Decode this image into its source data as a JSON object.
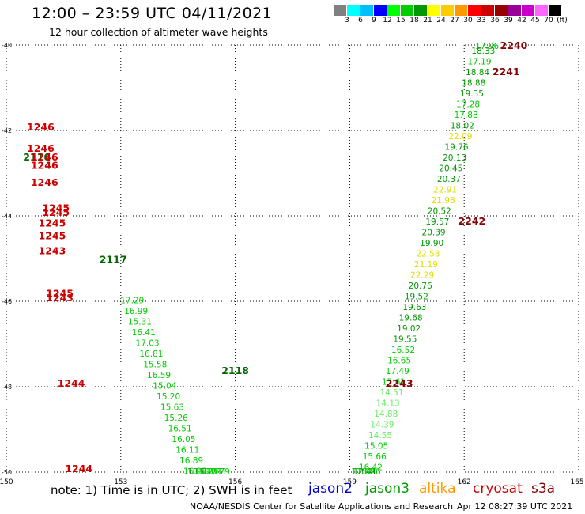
{
  "header": {
    "title": "12:00 – 23:59 UTC 04/11/2021",
    "subtitle": "12 hour collection of altimeter wave heights"
  },
  "legend": {
    "unit": "(ft)",
    "colors": [
      "#808080",
      "#00ffff",
      "#00bfff",
      "#0000ff",
      "#00ff00",
      "#00cc00",
      "#009900",
      "#ffff00",
      "#ffcc00",
      "#ff9900",
      "#ff0000",
      "#cc0000",
      "#990000",
      "#990099",
      "#cc00cc",
      "#ff66ff",
      "#000000"
    ],
    "labels": [
      "3",
      "6",
      "9",
      "12",
      "15",
      "18",
      "21",
      "24",
      "27",
      "30",
      "33",
      "36",
      "39",
      "42",
      "45",
      "70",
      "(ft)"
    ]
  },
  "notes": {
    "note": "note:  1) Time is in UTC; 2) SWH is in feet",
    "satellites": [
      {
        "name": "jason2",
        "color": "#0000cc"
      },
      {
        "name": "jason3",
        "color": "#009900"
      },
      {
        "name": "altika",
        "color": "#ff9900"
      },
      {
        "name": "cryosat",
        "color": "#cc0000"
      },
      {
        "name": "s3a",
        "color": "#880000"
      }
    ],
    "footer_left": "NOAA/NESDIS Center for Satellite Applications and Research",
    "footer_right": "Apr 12 08:27:39 UTC 2021"
  },
  "chart_data": {
    "type": "scatter",
    "title": "12:00 – 23:59 UTC 04/11/2021",
    "xlim": [
      150,
      165
    ],
    "ylim": [
      -50,
      -40
    ],
    "x_ticks": [
      150,
      153,
      156,
      159,
      162,
      165
    ],
    "y_ticks": [
      -40,
      -42,
      -44,
      -46,
      -48,
      -50
    ],
    "grid": true,
    "track_labels": [
      {
        "text": "2240",
        "lon": 163.3,
        "lat": -40.0,
        "color": "#880000"
      },
      {
        "text": "2241",
        "lon": 163.1,
        "lat": -40.7,
        "color": "#880000"
      },
      {
        "text": "2242",
        "lon": 162.2,
        "lat": -44.2,
        "color": "#880000"
      },
      {
        "text": "2243",
        "lon": 160.3,
        "lat": -48.0,
        "color": "#880000"
      },
      {
        "text": "1246",
        "lon": 150.9,
        "lat": -42.0,
        "color": "#cc0000"
      },
      {
        "text": "1246",
        "lon": 150.9,
        "lat": -42.5,
        "color": "#cc0000"
      },
      {
        "text": "2116",
        "lon": 150.8,
        "lat": -42.7,
        "color": "#006600"
      },
      {
        "text": "1246",
        "lon": 151.0,
        "lat": -42.7,
        "color": "#cc0000"
      },
      {
        "text": "1246",
        "lon": 151.0,
        "lat": -42.9,
        "color": "#cc0000"
      },
      {
        "text": "1246",
        "lon": 151.0,
        "lat": -43.3,
        "color": "#cc0000"
      },
      {
        "text": "1245",
        "lon": 151.3,
        "lat": -43.9,
        "color": "#cc0000"
      },
      {
        "text": "1245",
        "lon": 151.3,
        "lat": -44.0,
        "color": "#cc0000"
      },
      {
        "text": "1245",
        "lon": 151.2,
        "lat": -44.25,
        "color": "#cc0000"
      },
      {
        "text": "1245",
        "lon": 151.2,
        "lat": -44.55,
        "color": "#cc0000"
      },
      {
        "text": "1243",
        "lon": 151.2,
        "lat": -44.9,
        "color": "#cc0000"
      },
      {
        "text": "2117",
        "lon": 152.8,
        "lat": -45.1,
        "color": "#006600"
      },
      {
        "text": "1245",
        "lon": 151.4,
        "lat": -45.9,
        "color": "#cc0000"
      },
      {
        "text": "1243",
        "lon": 151.4,
        "lat": -46.0,
        "color": "#cc0000"
      },
      {
        "text": "2118",
        "lon": 156.0,
        "lat": -47.7,
        "color": "#006600"
      },
      {
        "text": "1244",
        "lon": 151.7,
        "lat": -48.0,
        "color": "#cc0000"
      },
      {
        "text": "1244",
        "lon": 151.9,
        "lat": -50.0,
        "color": "#cc0000"
      }
    ],
    "points": [
      {
        "v": "17.96",
        "lon": 162.6,
        "lat": -40.0
      },
      {
        "v": "18.33",
        "lon": 162.5,
        "lat": -40.2
      },
      {
        "v": "17.19",
        "lon": 162.4,
        "lat": -40.45
      },
      {
        "v": "18.84",
        "lon": 162.35,
        "lat": -40.7
      },
      {
        "v": "18.88",
        "lon": 162.25,
        "lat": -40.95
      },
      {
        "v": "19.35",
        "lon": 162.2,
        "lat": -41.2
      },
      {
        "v": "17.28",
        "lon": 162.1,
        "lat": -41.45
      },
      {
        "v": "17.88",
        "lon": 162.05,
        "lat": -41.7
      },
      {
        "v": "18.02",
        "lon": 161.95,
        "lat": -41.95
      },
      {
        "v": "22.09",
        "lon": 161.9,
        "lat": -42.2
      },
      {
        "v": "19.76",
        "lon": 161.8,
        "lat": -42.45
      },
      {
        "v": "20.13",
        "lon": 161.75,
        "lat": -42.7
      },
      {
        "v": "20.45",
        "lon": 161.65,
        "lat": -42.95
      },
      {
        "v": "20.37",
        "lon": 161.6,
        "lat": -43.2
      },
      {
        "v": "22.91",
        "lon": 161.5,
        "lat": -43.45
      },
      {
        "v": "21.98",
        "lon": 161.45,
        "lat": -43.7
      },
      {
        "v": "20.52",
        "lon": 161.35,
        "lat": -43.95
      },
      {
        "v": "19.57",
        "lon": 161.3,
        "lat": -44.2
      },
      {
        "v": "20.39",
        "lon": 161.2,
        "lat": -44.45
      },
      {
        "v": "19.90",
        "lon": 161.15,
        "lat": -44.7
      },
      {
        "v": "22.58",
        "lon": 161.05,
        "lat": -44.95
      },
      {
        "v": "21.19",
        "lon": 161.0,
        "lat": -45.2
      },
      {
        "v": "22.29",
        "lon": 160.9,
        "lat": -45.45
      },
      {
        "v": "20.76",
        "lon": 160.85,
        "lat": -45.7
      },
      {
        "v": "19.52",
        "lon": 160.75,
        "lat": -45.95
      },
      {
        "v": "19.63",
        "lon": 160.7,
        "lat": -46.2
      },
      {
        "v": "19.68",
        "lon": 160.6,
        "lat": -46.45
      },
      {
        "v": "19.02",
        "lon": 160.55,
        "lat": -46.7
      },
      {
        "v": "19.55",
        "lon": 160.45,
        "lat": -46.95
      },
      {
        "v": "16.52",
        "lon": 160.4,
        "lat": -47.2
      },
      {
        "v": "16.65",
        "lon": 160.3,
        "lat": -47.45
      },
      {
        "v": "17.49",
        "lon": 160.25,
        "lat": -47.7
      },
      {
        "v": "15.61",
        "lon": 160.15,
        "lat": -47.95
      },
      {
        "v": "14.51",
        "lon": 160.1,
        "lat": -48.2
      },
      {
        "v": "14.13",
        "lon": 160.0,
        "lat": -48.45
      },
      {
        "v": "14.88",
        "lon": 159.95,
        "lat": -48.7
      },
      {
        "v": "14.39",
        "lon": 159.85,
        "lat": -48.95
      },
      {
        "v": "14.55",
        "lon": 159.8,
        "lat": -49.2
      },
      {
        "v": "15.05",
        "lon": 159.7,
        "lat": -49.45
      },
      {
        "v": "15.66",
        "lon": 159.65,
        "lat": -49.7
      },
      {
        "v": "16.42",
        "lon": 159.55,
        "lat": -49.95
      },
      {
        "v": "15.86",
        "lon": 159.5,
        "lat": -50.2
      },
      {
        "v": "18.41",
        "lon": 159.4,
        "lat": -50.45
      },
      {
        "v": "17.67",
        "lon": 159.35,
        "lat": -50.7
      },
      {
        "v": "17.29",
        "lon": 153.3,
        "lat": -46.05
      },
      {
        "v": "16.99",
        "lon": 153.4,
        "lat": -46.3
      },
      {
        "v": "15.31",
        "lon": 153.5,
        "lat": -46.55
      },
      {
        "v": "16.41",
        "lon": 153.6,
        "lat": -46.8
      },
      {
        "v": "17.03",
        "lon": 153.7,
        "lat": -47.05
      },
      {
        "v": "16.81",
        "lon": 153.8,
        "lat": -47.3
      },
      {
        "v": "15.58",
        "lon": 153.9,
        "lat": -47.55
      },
      {
        "v": "16.59",
        "lon": 154.0,
        "lat": -47.8
      },
      {
        "v": "15.04",
        "lon": 154.15,
        "lat": -48.05
      },
      {
        "v": "15.20",
        "lon": 154.25,
        "lat": -48.3
      },
      {
        "v": "15.63",
        "lon": 154.35,
        "lat": -48.55
      },
      {
        "v": "15.26",
        "lon": 154.45,
        "lat": -48.8
      },
      {
        "v": "16.51",
        "lon": 154.55,
        "lat": -49.05
      },
      {
        "v": "16.05",
        "lon": 154.65,
        "lat": -49.3
      },
      {
        "v": "16.11",
        "lon": 154.75,
        "lat": -49.55
      },
      {
        "v": "16.89",
        "lon": 154.85,
        "lat": -49.8
      },
      {
        "v": "16.93",
        "lon": 154.95,
        "lat": -50.05
      },
      {
        "v": "18.13",
        "lon": 155.05,
        "lat": -50.3
      },
      {
        "v": "14.21",
        "lon": 155.15,
        "lat": -50.55
      },
      {
        "v": "15.89",
        "lon": 155.25,
        "lat": -50.8
      },
      {
        "v": "15.01",
        "lon": 155.35,
        "lat": -51.05
      },
      {
        "v": "17.83",
        "lon": 155.45,
        "lat": -51.3
      },
      {
        "v": "17.79",
        "lon": 155.55,
        "lat": -51.55
      }
    ]
  }
}
